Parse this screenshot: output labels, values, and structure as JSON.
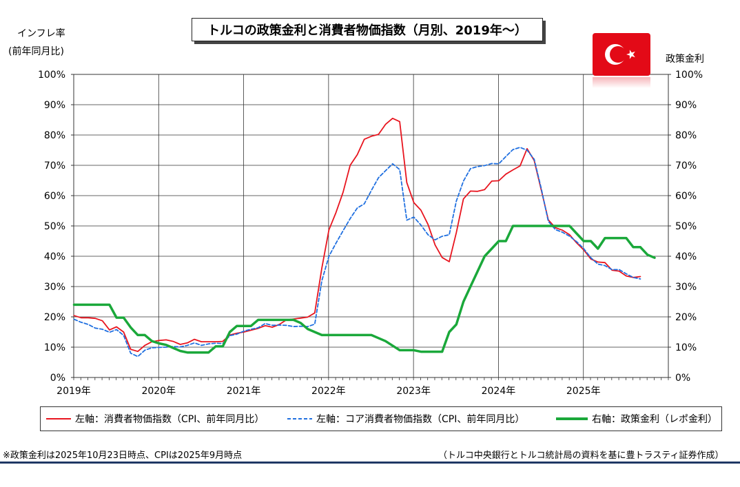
{
  "title": "トルコの政策金利と消費者物価指数（月別、2019年～）",
  "left_axis_label_1": "インフレ率",
  "left_axis_label_2": "(前年同月比)",
  "right_axis_label": "政策金利",
  "legend": {
    "cpi": "左軸：消費者物価指数（CPI、前年同月比）",
    "core": "左軸：コア消費者物価指数（CPI、前年同月比）",
    "policy": "右軸：政策金利（レポ金利）"
  },
  "footnote_left": "※政策金利は2025年10月23日時点、CPIは2025年9月時点",
  "footnote_right": "（トルコ中央銀行とトルコ統計局の資料を基に豊トラスティ証券作成）",
  "colors": {
    "cpi": "#e8141e",
    "core": "#1f6fe0",
    "policy": "#1aa83a",
    "flag": "#e30a17",
    "bar": "#1f3864"
  },
  "flag_icon": "turkey-flag-icon",
  "chart_data": {
    "type": "line",
    "x_start": "2019-01",
    "x_end": "2025-12",
    "x_tick_labels": [
      "2019年",
      "2020年",
      "2021年",
      "2022年",
      "2023年",
      "2024年",
      "2025年"
    ],
    "y_ticks_left": [
      "0%",
      "10%",
      "20%",
      "30%",
      "40%",
      "50%",
      "60%",
      "70%",
      "80%",
      "90%",
      "100%"
    ],
    "y_ticks_right": [
      "0%",
      "10%",
      "20%",
      "30%",
      "40%",
      "50%",
      "60%",
      "70%",
      "80%",
      "90%",
      "100%"
    ],
    "ylim_left": [
      0,
      100
    ],
    "ylim_right": [
      0,
      100
    ],
    "grid": true,
    "series": [
      {
        "key": "cpi",
        "name": "左軸：消費者物価指数（CPI、前年同月比）",
        "axis": "left",
        "style": "solid",
        "values": [
          20.4,
          19.7,
          19.7,
          19.5,
          18.7,
          15.7,
          16.7,
          15.0,
          9.3,
          8.6,
          10.6,
          11.8,
          12.2,
          12.4,
          11.9,
          10.9,
          11.4,
          12.6,
          11.8,
          11.8,
          11.8,
          11.9,
          14.0,
          14.6,
          15.0,
          15.6,
          16.2,
          17.1,
          16.6,
          17.5,
          19.0,
          19.3,
          19.6,
          19.9,
          21.3,
          36.1,
          48.7,
          54.4,
          61.1,
          70.0,
          73.5,
          78.6,
          79.6,
          80.2,
          83.5,
          85.5,
          84.4,
          64.3,
          57.7,
          55.2,
          50.5,
          43.7,
          39.6,
          38.2,
          47.8,
          58.9,
          61.5,
          61.4,
          62.0,
          64.8,
          64.9,
          67.1,
          68.5,
          69.8,
          75.5,
          71.6,
          61.8,
          52.0,
          49.4,
          48.6,
          47.1,
          44.4,
          42.1,
          39.1,
          38.1,
          37.9,
          35.4,
          35.1,
          33.5,
          33.0,
          33.3
        ]
      },
      {
        "key": "core",
        "name": "左軸：コア消費者物価指数（CPI、前年同月比）",
        "axis": "left",
        "style": "dashed",
        "values": [
          19.2,
          18.2,
          17.5,
          16.3,
          15.9,
          14.9,
          15.8,
          13.9,
          8.0,
          6.9,
          9.0,
          9.8,
          9.9,
          10.0,
          10.2,
          10.1,
          10.6,
          11.4,
          10.6,
          11.1,
          11.3,
          11.2,
          13.8,
          14.3,
          15.3,
          15.9,
          16.4,
          17.8,
          17.2,
          17.3,
          17.2,
          16.8,
          16.9,
          16.8,
          17.6,
          31.9,
          40.0,
          44.3,
          48.4,
          52.4,
          55.9,
          57.3,
          61.7,
          65.9,
          68.2,
          70.5,
          68.6,
          51.9,
          52.9,
          50.3,
          47.1,
          45.4,
          46.6,
          47.1,
          58.2,
          64.8,
          68.9,
          69.6,
          69.9,
          70.6,
          70.5,
          72.9,
          75.2,
          75.9,
          75.0,
          72.0,
          62.3,
          51.5,
          48.8,
          47.9,
          46.6,
          44.8,
          42.5,
          39.5,
          37.4,
          36.9,
          35.6,
          35.6,
          34.2,
          33.0,
          32.5
        ]
      },
      {
        "key": "policy",
        "name": "右軸：政策金利（レポ金利）",
        "axis": "right",
        "style": "solid",
        "values": [
          24,
          24,
          24,
          24,
          24,
          24,
          19.75,
          19.75,
          16.5,
          14,
          14,
          12,
          11.25,
          10.75,
          9.75,
          8.75,
          8.25,
          8.25,
          8.25,
          8.25,
          10.25,
          10.25,
          15,
          17,
          17,
          17,
          19,
          19,
          19,
          19,
          19,
          19,
          18,
          16,
          15,
          14,
          14,
          14,
          14,
          14,
          14,
          14,
          14,
          13,
          12,
          10.5,
          9,
          9,
          9,
          8.5,
          8.5,
          8.5,
          8.5,
          15,
          17.5,
          25,
          30,
          35,
          40,
          42.5,
          45,
          45,
          50,
          50,
          50,
          50,
          50,
          50,
          50,
          50,
          50,
          47.5,
          45,
          45,
          42.5,
          46,
          46,
          46,
          46,
          43,
          43,
          40.5,
          39.5
        ]
      }
    ]
  }
}
